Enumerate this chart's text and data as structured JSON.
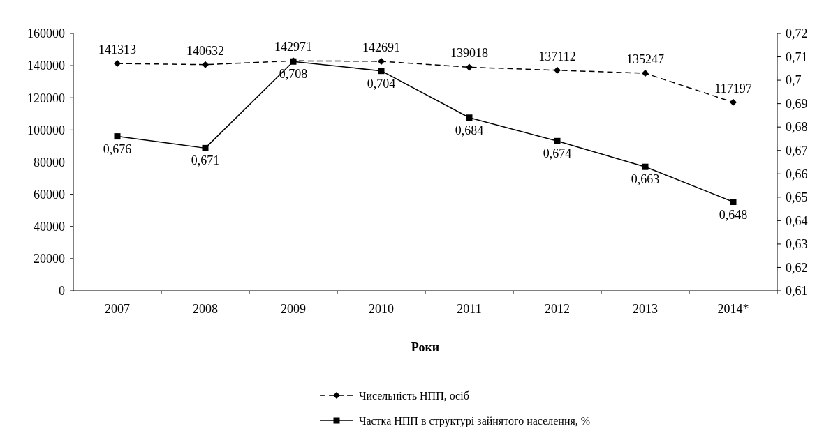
{
  "chart_data": {
    "type": "line",
    "xlabel": "Роки",
    "categories": [
      "2007",
      "2008",
      "2009",
      "2010",
      "2011",
      "2012",
      "2013",
      "2014*"
    ],
    "series": [
      {
        "name": "Чисельність НПП, осіб",
        "color": "#000000",
        "line_style": "dashed",
        "marker": "diamond",
        "values": [
          141313,
          140632,
          142971,
          142691,
          139018,
          137112,
          135247,
          117197
        ],
        "value_labels": [
          "141313",
          "140632",
          "142971",
          "142691",
          "139018",
          "137112",
          "135247",
          "117197"
        ]
      },
      {
        "name": "Частка НПП в структурі зайнятого населення, %",
        "color": "#000000",
        "line_style": "solid",
        "marker": "square",
        "axis": "y2",
        "values": [
          0.676,
          0.671,
          0.708,
          0.704,
          0.684,
          0.674,
          0.663,
          0.648
        ],
        "value_labels": [
          "0,676",
          "0,671",
          "0,708",
          "0,704",
          "0,684",
          "0,674",
          "0,663",
          "0,648"
        ]
      }
    ],
    "ylim": [
      0,
      160000
    ],
    "yticks": [
      0,
      20000,
      40000,
      60000,
      80000,
      100000,
      120000,
      140000,
      160000
    ],
    "y2lim": [
      0.61,
      0.72
    ],
    "y2ticks": [
      {
        "value": 0.61,
        "label": "0,61"
      },
      {
        "value": 0.62,
        "label": "0,62"
      },
      {
        "value": 0.63,
        "label": "0,63"
      },
      {
        "value": 0.64,
        "label": "0,64"
      },
      {
        "value": 0.65,
        "label": "0,65"
      },
      {
        "value": 0.66,
        "label": "0,66"
      },
      {
        "value": 0.67,
        "label": "0,67"
      },
      {
        "value": 0.68,
        "label": "0,68"
      },
      {
        "value": 0.69,
        "label": "0,69"
      },
      {
        "value": 0.7,
        "label": "0,7"
      },
      {
        "value": 0.71,
        "label": "0,71"
      },
      {
        "value": 0.72,
        "label": "0,72"
      }
    ],
    "legend": "bottom",
    "grid": false
  }
}
